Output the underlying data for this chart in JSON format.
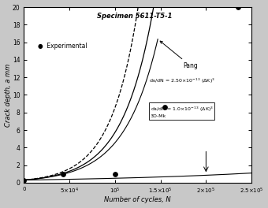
{
  "title": "Specimen 5611-T5-1",
  "xlabel": "Number of cycles, N",
  "ylabel": "Crack depth, a mm",
  "xlim": [
    0,
    250000
  ],
  "ylim": [
    0,
    20
  ],
  "experimental_points": [
    [
      0,
      0.3
    ],
    [
      43000,
      1.0
    ],
    [
      100000,
      1.0
    ],
    [
      155000,
      8.6
    ],
    [
      235000,
      20.0
    ]
  ],
  "bg_color": "#c8c8c8",
  "plot_bg_color": "#ffffff",
  "line_color": "#000000",
  "curve_3DMk_fast_end_N": 130000,
  "curve_2DMk_end_N": 143000,
  "curve_Pang_end_N": 147000,
  "curve_slow_end_N": 250000,
  "a0": 0.3,
  "exp_scale_3DMk_fast": 3.35e-05,
  "exp_scale_2DMk": 2.95e-05,
  "exp_scale_Pang": 2.72e-05,
  "exp_scale_slow": 5.2e-06
}
